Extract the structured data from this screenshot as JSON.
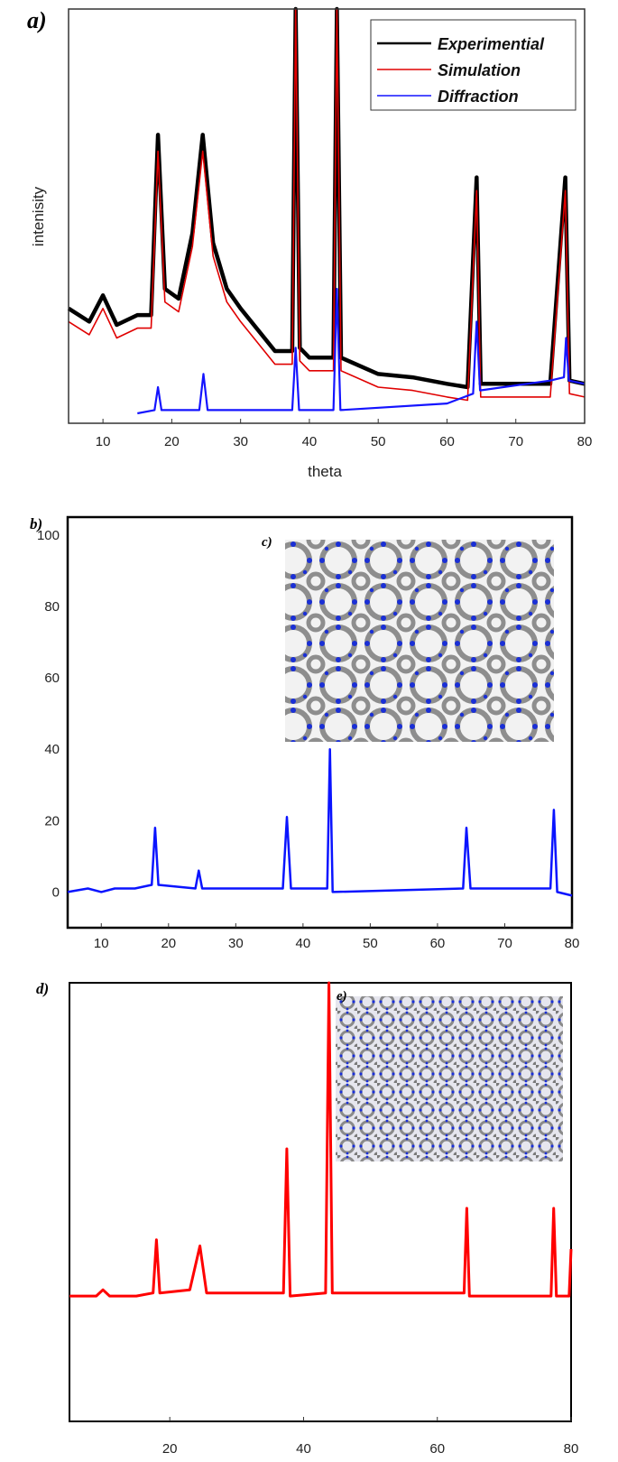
{
  "figure": {
    "panel_labels": {
      "a": "a)",
      "b": "b)",
      "c": "c)",
      "d": "d)",
      "e": "e)"
    }
  },
  "chart_data": [
    {
      "panel": "a)",
      "type": "line",
      "xlabel": "theta",
      "ylabel": "intenisity",
      "xlim": [
        5,
        80
      ],
      "ylim": [
        0,
        100
      ],
      "x_ticks": [
        "10",
        "20",
        "30",
        "40",
        "50",
        "60",
        "70",
        "80"
      ],
      "legend": {
        "placement": "top-right",
        "entries": [
          "Experimential",
          "Simulation",
          "Diffraction"
        ]
      },
      "colors": {
        "Experimential": "#000000",
        "Simulation": "#e00000",
        "Diffraction": "#1414ff"
      },
      "grid": false,
      "series": [
        {
          "name": "Experimential",
          "x": [
            5,
            8,
            10,
            12,
            15,
            17,
            18,
            19,
            21,
            23,
            24.5,
            26,
            28,
            30,
            35,
            37.5,
            38,
            38.6,
            40,
            43.5,
            44,
            44.6,
            50,
            55,
            60,
            63,
            64.3,
            64.9,
            70,
            75,
            77.2,
            77.8,
            80
          ],
          "y": [
            32,
            28,
            36,
            27,
            30,
            30,
            85,
            38,
            35,
            55,
            85,
            52,
            38,
            32,
            19,
            19,
            130,
            20,
            17,
            17,
            130,
            17,
            12,
            11,
            9,
            8,
            72,
            9,
            9,
            9,
            72,
            10,
            9
          ]
        },
        {
          "name": "Simulation",
          "x": [
            5,
            8,
            10,
            12,
            15,
            17,
            18,
            19,
            21,
            23,
            24.5,
            26,
            28,
            30,
            35,
            37.5,
            38,
            38.6,
            40,
            43.5,
            44,
            44.6,
            50,
            55,
            60,
            63,
            64.3,
            64.9,
            70,
            75,
            77.2,
            77.8,
            80
          ],
          "y": [
            28,
            24,
            32,
            23,
            26,
            26,
            80,
            34,
            31,
            51,
            80,
            48,
            34,
            28,
            15,
            15,
            125,
            16,
            13,
            13,
            125,
            13,
            8,
            7,
            5,
            4,
            68,
            5,
            5,
            5,
            68,
            6,
            5
          ]
        },
        {
          "name": "Diffraction",
          "x": [
            15,
            17.5,
            18,
            18.5,
            24,
            24.6,
            25.2,
            37.5,
            38,
            38.5,
            43.5,
            44,
            44.5,
            60,
            63.8,
            64.3,
            64.8,
            75,
            77,
            77.3,
            77.7,
            80
          ],
          "y": [
            0,
            1,
            8,
            1,
            1,
            12,
            1,
            1,
            20,
            1,
            1,
            38,
            1,
            3,
            6,
            28,
            7,
            10,
            11,
            23,
            10,
            9
          ]
        }
      ]
    },
    {
      "panel": "b)",
      "type": "line",
      "xlim": [
        5,
        80
      ],
      "ylim": [
        -10,
        105
      ],
      "x_ticks": [
        "10",
        "20",
        "30",
        "40",
        "50",
        "60",
        "70",
        "80"
      ],
      "y_ticks": [
        "0",
        "20",
        "40",
        "60",
        "80",
        "100"
      ],
      "colors": {
        "line": "#0a14ff"
      },
      "grid": false,
      "series": [
        {
          "x": [
            5,
            8,
            10,
            12,
            15,
            17.5,
            18,
            18.5,
            24,
            24.5,
            25,
            37,
            37.6,
            38.2,
            43.6,
            44,
            44.4,
            63.8,
            64.3,
            64.9,
            76.8,
            77.3,
            77.8,
            80
          ],
          "y": [
            0,
            1,
            0,
            1,
            1,
            2,
            18,
            2,
            1,
            6,
            1,
            1,
            21,
            1,
            1,
            40,
            0,
            1,
            18,
            1,
            1,
            23,
            0,
            -1
          ]
        }
      ]
    },
    {
      "panel": "d)",
      "type": "line",
      "xlim": [
        5,
        80
      ],
      "ylim": [
        -40,
        100
      ],
      "x_ticks": [
        "20",
        "40",
        "60",
        "80"
      ],
      "colors": {
        "line": "#ff0000"
      },
      "grid": false,
      "series": [
        {
          "x": [
            5,
            9,
            10,
            11,
            15,
            17.5,
            18,
            18.5,
            23,
            24.5,
            25.5,
            37,
            37.5,
            38,
            43.3,
            43.8,
            44.3,
            64,
            64.4,
            64.8,
            77,
            77.4,
            77.8,
            79.7,
            80
          ],
          "y": [
            0,
            0,
            2,
            0,
            0,
            1,
            18,
            1,
            2,
            16,
            1,
            1,
            47,
            0,
            1,
            100,
            1,
            1,
            28,
            0,
            0,
            28,
            0,
            0,
            15
          ]
        }
      ]
    }
  ],
  "insets": [
    {
      "label": "c)",
      "description_colors": {
        "atoms": "#8a8a8a",
        "nitrogen": "#1a2fd6"
      }
    },
    {
      "label": "e)",
      "description_colors": {
        "atoms": "#8a8a8a",
        "nitrogen": "#1a2fd6"
      }
    }
  ]
}
